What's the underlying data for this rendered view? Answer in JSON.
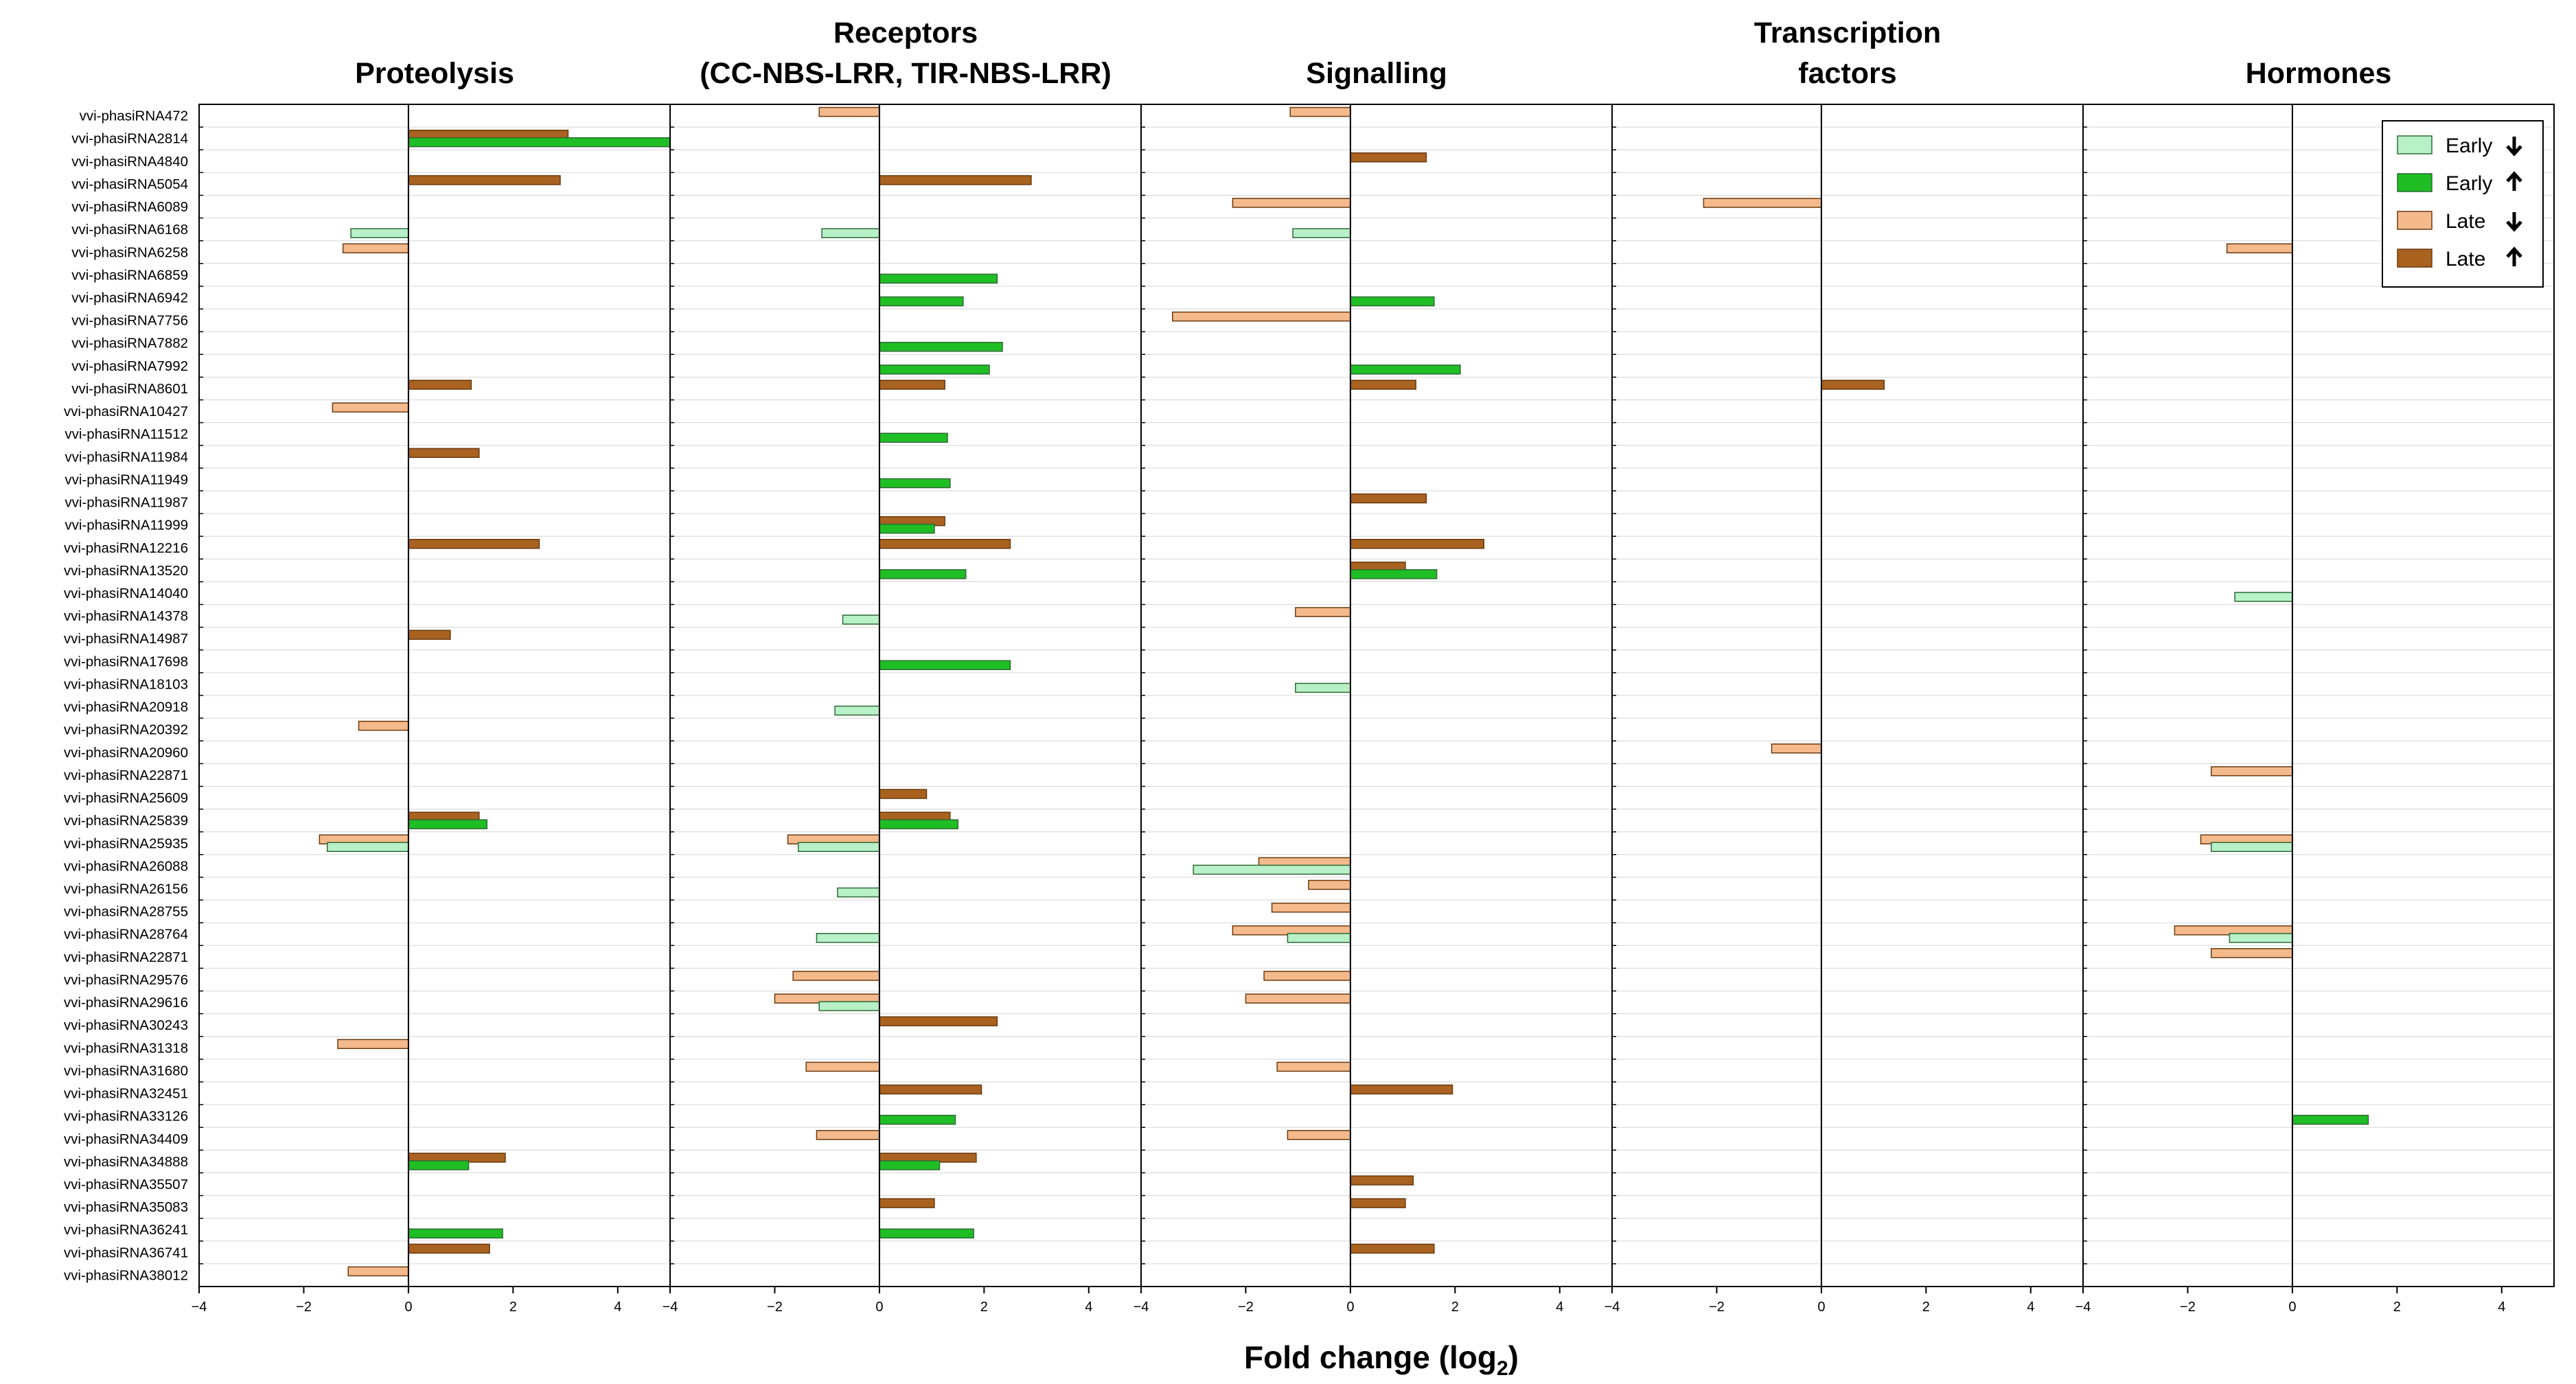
{
  "chart_data": {
    "type": "bar",
    "orientation": "horizontal",
    "xlabel": "Fold change (log",
    "xlabel_sub": "2",
    "xlabel_suffix": ")",
    "xlim": [
      -4,
      5
    ],
    "xticks": [
      -4,
      -2,
      0,
      2,
      4
    ],
    "grid": "horizontal row lines",
    "legend_placement": "top-right",
    "colors": {
      "early_down": "#b8f0c8",
      "early_up": "#1fbe24",
      "late_down": "#f5ba8c",
      "late_up": "#a9621f"
    },
    "legend": [
      {
        "key": "early_down",
        "label": "Early",
        "arrow": "down"
      },
      {
        "key": "early_up",
        "label": "Early",
        "arrow": "up"
      },
      {
        "key": "late_down",
        "label": "Late",
        "arrow": "down"
      },
      {
        "key": "late_up",
        "label": "Late",
        "arrow": "up"
      }
    ],
    "rows": [
      "vvi-phasiRNA472",
      "vvi-phasiRNA2814",
      "vvi-phasiRNA4840",
      "vvi-phasiRNA5054",
      "vvi-phasiRNA6089",
      "vvi-phasiRNA6168",
      "vvi-phasiRNA6258",
      "vvi-phasiRNA6859",
      "vvi-phasiRNA6942",
      "vvi-phasiRNA7756",
      "vvi-phasiRNA7882",
      "vvi-phasiRNA7992",
      "vvi-phasiRNA8601",
      "vvi-phasiRNA10427",
      "vvi-phasiRNA11512",
      "vvi-phasiRNA11984",
      "vvi-phasiRNA11949",
      "vvi-phasiRNA11987",
      "vvi-phasiRNA11999",
      "vvi-phasiRNA12216",
      "vvi-phasiRNA13520",
      "vvi-phasiRNA14040",
      "vvi-phasiRNA14378",
      "vvi-phasiRNA14987",
      "vvi-phasiRNA17698",
      "vvi-phasiRNA18103",
      "vvi-phasiRNA20918",
      "vvi-phasiRNA20392",
      "vvi-phasiRNA20960",
      "vvi-phasiRNA22871",
      "vvi-phasiRNA25609",
      "vvi-phasiRNA25839",
      "vvi-phasiRNA25935",
      "vvi-phasiRNA26088",
      "vvi-phasiRNA26156",
      "vvi-phasiRNA28755",
      "vvi-phasiRNA28764",
      "vvi-phasiRNA22871",
      "vvi-phasiRNA29576",
      "vvi-phasiRNA29616",
      "vvi-phasiRNA30243",
      "vvi-phasiRNA31318",
      "vvi-phasiRNA31680",
      "vvi-phasiRNA32451",
      "vvi-phasiRNA33126",
      "vvi-phasiRNA34409",
      "vvi-phasiRNA34888",
      "vvi-phasiRNA35507",
      "vvi-phasiRNA35083",
      "vvi-phasiRNA36241",
      "vvi-phasiRNA36741",
      "vvi-phasiRNA38012"
    ],
    "panels": [
      {
        "title": [
          "Proteolysis"
        ],
        "bars": [
          {
            "row": 1,
            "kind": "late",
            "value": 3.05
          },
          {
            "row": 1,
            "kind": "early",
            "value": 5.0
          },
          {
            "row": 3,
            "kind": "late",
            "value": 2.9
          },
          {
            "row": 5,
            "kind": "early",
            "value": -1.1
          },
          {
            "row": 6,
            "kind": "late",
            "value": -1.25
          },
          {
            "row": 12,
            "kind": "late",
            "value": 1.2
          },
          {
            "row": 13,
            "kind": "late",
            "value": -1.45
          },
          {
            "row": 15,
            "kind": "late",
            "value": 1.35
          },
          {
            "row": 19,
            "kind": "late",
            "value": 2.5
          },
          {
            "row": 23,
            "kind": "late",
            "value": 0.8
          },
          {
            "row": 27,
            "kind": "late",
            "value": -0.95
          },
          {
            "row": 31,
            "kind": "late",
            "value": 1.35
          },
          {
            "row": 31,
            "kind": "early",
            "value": 1.5
          },
          {
            "row": 32,
            "kind": "late",
            "value": -1.7
          },
          {
            "row": 32,
            "kind": "early",
            "value": -1.55
          },
          {
            "row": 41,
            "kind": "late",
            "value": -1.35
          },
          {
            "row": 46,
            "kind": "late",
            "value": 1.85
          },
          {
            "row": 46,
            "kind": "early",
            "value": 1.15
          },
          {
            "row": 49,
            "kind": "early",
            "value": 1.8
          },
          {
            "row": 50,
            "kind": "late",
            "value": 1.55
          },
          {
            "row": 51,
            "kind": "late",
            "value": -1.15
          }
        ]
      },
      {
        "title": [
          "Receptors",
          "(CC-NBS-LRR, TIR-NBS-LRR)"
        ],
        "bars": [
          {
            "row": 0,
            "kind": "late",
            "value": -1.15
          },
          {
            "row": 3,
            "kind": "late",
            "value": 2.9
          },
          {
            "row": 5,
            "kind": "early",
            "value": -1.1
          },
          {
            "row": 7,
            "kind": "early",
            "value": 2.25
          },
          {
            "row": 8,
            "kind": "early",
            "value": 1.6
          },
          {
            "row": 10,
            "kind": "early",
            "value": 2.35
          },
          {
            "row": 11,
            "kind": "early",
            "value": 2.1
          },
          {
            "row": 12,
            "kind": "late",
            "value": 1.25
          },
          {
            "row": 14,
            "kind": "early",
            "value": 1.3
          },
          {
            "row": 16,
            "kind": "early",
            "value": 1.35
          },
          {
            "row": 18,
            "kind": "late",
            "value": 1.25
          },
          {
            "row": 18,
            "kind": "early",
            "value": 1.05
          },
          {
            "row": 19,
            "kind": "late",
            "value": 2.5
          },
          {
            "row": 20,
            "kind": "early",
            "value": 1.65
          },
          {
            "row": 22,
            "kind": "early",
            "value": -0.7
          },
          {
            "row": 24,
            "kind": "early",
            "value": 2.5
          },
          {
            "row": 26,
            "kind": "early",
            "value": -0.85
          },
          {
            "row": 30,
            "kind": "late",
            "value": 0.9
          },
          {
            "row": 31,
            "kind": "late",
            "value": 1.35
          },
          {
            "row": 31,
            "kind": "early",
            "value": 1.5
          },
          {
            "row": 32,
            "kind": "late",
            "value": -1.75
          },
          {
            "row": 32,
            "kind": "early",
            "value": -1.55
          },
          {
            "row": 34,
            "kind": "early",
            "value": -0.8
          },
          {
            "row": 36,
            "kind": "early",
            "value": -1.2
          },
          {
            "row": 38,
            "kind": "late",
            "value": -1.65
          },
          {
            "row": 39,
            "kind": "late",
            "value": -2.0
          },
          {
            "row": 39,
            "kind": "early",
            "value": -1.15
          },
          {
            "row": 40,
            "kind": "late",
            "value": 2.25
          },
          {
            "row": 42,
            "kind": "late",
            "value": -1.4
          },
          {
            "row": 43,
            "kind": "late",
            "value": 1.95
          },
          {
            "row": 44,
            "kind": "early",
            "value": 1.45
          },
          {
            "row": 45,
            "kind": "late",
            "value": -1.2
          },
          {
            "row": 46,
            "kind": "late",
            "value": 1.85
          },
          {
            "row": 46,
            "kind": "early",
            "value": 1.15
          },
          {
            "row": 48,
            "kind": "late",
            "value": 1.05
          },
          {
            "row": 49,
            "kind": "early",
            "value": 1.8
          }
        ]
      },
      {
        "title": [
          "Signalling"
        ],
        "bars": [
          {
            "row": 0,
            "kind": "late",
            "value": -1.15
          },
          {
            "row": 2,
            "kind": "late",
            "value": 1.45
          },
          {
            "row": 4,
            "kind": "late",
            "value": -2.25
          },
          {
            "row": 5,
            "kind": "early",
            "value": -1.1
          },
          {
            "row": 8,
            "kind": "early",
            "value": 1.6
          },
          {
            "row": 9,
            "kind": "late",
            "value": -3.4
          },
          {
            "row": 11,
            "kind": "early",
            "value": 2.1
          },
          {
            "row": 12,
            "kind": "late",
            "value": 1.25
          },
          {
            "row": 17,
            "kind": "late",
            "value": 1.45
          },
          {
            "row": 19,
            "kind": "late",
            "value": 2.55
          },
          {
            "row": 20,
            "kind": "late",
            "value": 1.05
          },
          {
            "row": 20,
            "kind": "early",
            "value": 1.65
          },
          {
            "row": 22,
            "kind": "late",
            "value": -1.05
          },
          {
            "row": 25,
            "kind": "early",
            "value": -1.05
          },
          {
            "row": 33,
            "kind": "late",
            "value": -1.75
          },
          {
            "row": 33,
            "kind": "early",
            "value": -3.0
          },
          {
            "row": 34,
            "kind": "late",
            "value": -0.8
          },
          {
            "row": 35,
            "kind": "late",
            "value": -1.5
          },
          {
            "row": 36,
            "kind": "late",
            "value": -2.25
          },
          {
            "row": 36,
            "kind": "early",
            "value": -1.2
          },
          {
            "row": 38,
            "kind": "late",
            "value": -1.65
          },
          {
            "row": 39,
            "kind": "late",
            "value": -2.0
          },
          {
            "row": 42,
            "kind": "late",
            "value": -1.4
          },
          {
            "row": 43,
            "kind": "late",
            "value": 1.95
          },
          {
            "row": 45,
            "kind": "late",
            "value": -1.2
          },
          {
            "row": 47,
            "kind": "late",
            "value": 1.2
          },
          {
            "row": 48,
            "kind": "late",
            "value": 1.05
          },
          {
            "row": 50,
            "kind": "late",
            "value": 1.6
          }
        ]
      },
      {
        "title": [
          "Transcription",
          "factors"
        ],
        "bars": [
          {
            "row": 4,
            "kind": "late",
            "value": -2.25
          },
          {
            "row": 12,
            "kind": "late",
            "value": 1.2
          },
          {
            "row": 28,
            "kind": "late",
            "value": -0.95
          }
        ]
      },
      {
        "title": [
          "Hormones"
        ],
        "bars": [
          {
            "row": 6,
            "kind": "late",
            "value": -1.25
          },
          {
            "row": 21,
            "kind": "early",
            "value": -1.1
          },
          {
            "row": 29,
            "kind": "late",
            "value": -1.55
          },
          {
            "row": 32,
            "kind": "late",
            "value": -1.75
          },
          {
            "row": 32,
            "kind": "early",
            "value": -1.55
          },
          {
            "row": 36,
            "kind": "late",
            "value": -2.25
          },
          {
            "row": 36,
            "kind": "early",
            "value": -1.2
          },
          {
            "row": 37,
            "kind": "late",
            "value": -1.55
          },
          {
            "row": 44,
            "kind": "early",
            "value": 1.45
          }
        ]
      }
    ]
  }
}
